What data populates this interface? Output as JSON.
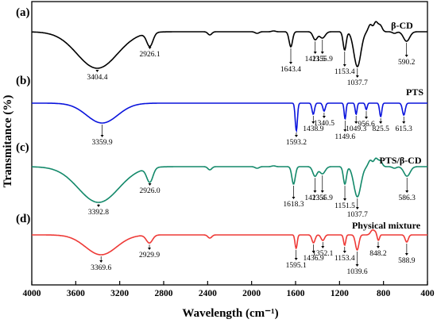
{
  "chart_data": {
    "type": "line",
    "xlabel": "Wavelength (cm⁻¹)",
    "ylabel": "Transmitance (%)",
    "xlim": [
      4000,
      400
    ],
    "x_reversed": true,
    "x_ticks": [
      4000,
      3600,
      3200,
      2800,
      2400,
      2000,
      1600,
      1200,
      800,
      400
    ],
    "grid": false,
    "series": [
      {
        "panel": "(a)",
        "name": "β-CD",
        "color": "#000000",
        "peaks": [
          {
            "x": 3404.4,
            "label": "3404.4"
          },
          {
            "x": 2926.1,
            "label": "2926.1"
          },
          {
            "x": 1643.4,
            "label": "1643.4"
          },
          {
            "x": 1421.5,
            "label": "1421.5"
          },
          {
            "x": 1355.9,
            "label": "1355.9"
          },
          {
            "x": 1153.4,
            "label": "1153.4"
          },
          {
            "x": 1037.7,
            "label": "1037.7"
          },
          {
            "x": 590.2,
            "label": "590.2"
          }
        ]
      },
      {
        "panel": "(b)",
        "name": "PTS",
        "color": "#0a14dc",
        "peaks": [
          {
            "x": 3359.9,
            "label": "3359.9"
          },
          {
            "x": 1593.2,
            "label": "1593.2"
          },
          {
            "x": 1438.9,
            "label": "1438.9"
          },
          {
            "x": 1340.5,
            "label": "1340.5"
          },
          {
            "x": 1149.6,
            "label": "1149.6"
          },
          {
            "x": 1049.3,
            "label": "1049.3"
          },
          {
            "x": 956.6,
            "label": "956.6"
          },
          {
            "x": 825.5,
            "label": "825.5"
          },
          {
            "x": 615.3,
            "label": "615.3"
          }
        ]
      },
      {
        "panel": "(c)",
        "name": "PTS/β-CD",
        "color": "#13896a",
        "peaks": [
          {
            "x": 3392.8,
            "label": "3392.8"
          },
          {
            "x": 2926.0,
            "label": "2926.0"
          },
          {
            "x": 1618.3,
            "label": "1618.3"
          },
          {
            "x": 1423.4,
            "label": "1423.4"
          },
          {
            "x": 1355.9,
            "label": "1355.9"
          },
          {
            "x": 1151.5,
            "label": "1151.5"
          },
          {
            "x": 1037.7,
            "label": "1037.7"
          },
          {
            "x": 586.3,
            "label": "586.3"
          }
        ]
      },
      {
        "panel": "(d)",
        "name": "Physical mixture",
        "color": "#ee3a37",
        "peaks": [
          {
            "x": 3369.6,
            "label": "3369.6"
          },
          {
            "x": 2929.9,
            "label": "2929.9"
          },
          {
            "x": 1595.1,
            "label": "1595.1"
          },
          {
            "x": 1436.9,
            "label": "1436.9"
          },
          {
            "x": 1352.1,
            "label": "1352.1"
          },
          {
            "x": 1153.4,
            "label": "1153.4"
          },
          {
            "x": 1039.6,
            "label": "1039.6"
          },
          {
            "x": 848.2,
            "label": "848.2"
          },
          {
            "x": 588.9,
            "label": "588.9"
          }
        ]
      }
    ]
  }
}
